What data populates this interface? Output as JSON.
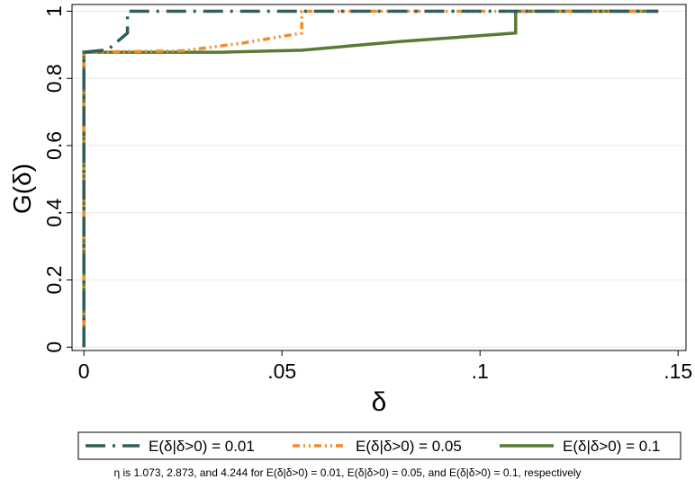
{
  "chart_data": {
    "type": "line",
    "xlabel": "δ",
    "ylabel": "G(δ)",
    "xlim": [
      -0.003,
      0.152
    ],
    "ylim": [
      -0.01,
      1.02
    ],
    "xticks": [
      {
        "value": 0,
        "label": "0"
      },
      {
        "value": 0.05,
        "label": ".05"
      },
      {
        "value": 0.1,
        "label": ".1"
      },
      {
        "value": 0.15,
        "label": ".15"
      }
    ],
    "yticks": [
      {
        "value": 0,
        "label": "0"
      },
      {
        "value": 0.2,
        "label": "0.2"
      },
      {
        "value": 0.4,
        "label": "0.4"
      },
      {
        "value": 0.6,
        "label": "0.6"
      },
      {
        "value": 0.8,
        "label": "0.8"
      },
      {
        "value": 1,
        "label": "1"
      }
    ],
    "grid": true,
    "legend_position": "bottom",
    "series": [
      {
        "name": "E(δ|δ>0) = 0.01",
        "color": "#2e5f5c",
        "style": "long-dash-dot",
        "points": [
          [
            0,
            0
          ],
          [
            0,
            0.878
          ],
          [
            0.006,
            0.885
          ],
          [
            0.011,
            0.935
          ],
          [
            0.011,
            1.0
          ],
          [
            0.145,
            1.0
          ]
        ]
      },
      {
        "name": "E(δ|δ>0) = 0.05",
        "color": "#f28c28",
        "style": "dash-dot-dot",
        "points": [
          [
            0,
            0
          ],
          [
            0,
            0.878
          ],
          [
            0.025,
            0.882
          ],
          [
            0.04,
            0.905
          ],
          [
            0.055,
            0.935
          ],
          [
            0.055,
            1.0
          ],
          [
            0.145,
            1.0
          ]
        ]
      },
      {
        "name": "E(δ|δ>0) = 0.1",
        "color": "#577a34",
        "style": "solid",
        "points": [
          [
            0,
            0
          ],
          [
            0,
            0.878
          ],
          [
            0.035,
            0.878
          ],
          [
            0.055,
            0.884
          ],
          [
            0.08,
            0.91
          ],
          [
            0.109,
            0.935
          ],
          [
            0.109,
            1.0
          ],
          [
            0.145,
            1.0
          ]
        ]
      }
    ],
    "note": "η is 1.073, 2.873, and 4.244 for E(δ|δ>0) = 0.01, E(δ|δ>0) = 0.05, and E(δ|δ>0) = 0.1, respectively"
  }
}
